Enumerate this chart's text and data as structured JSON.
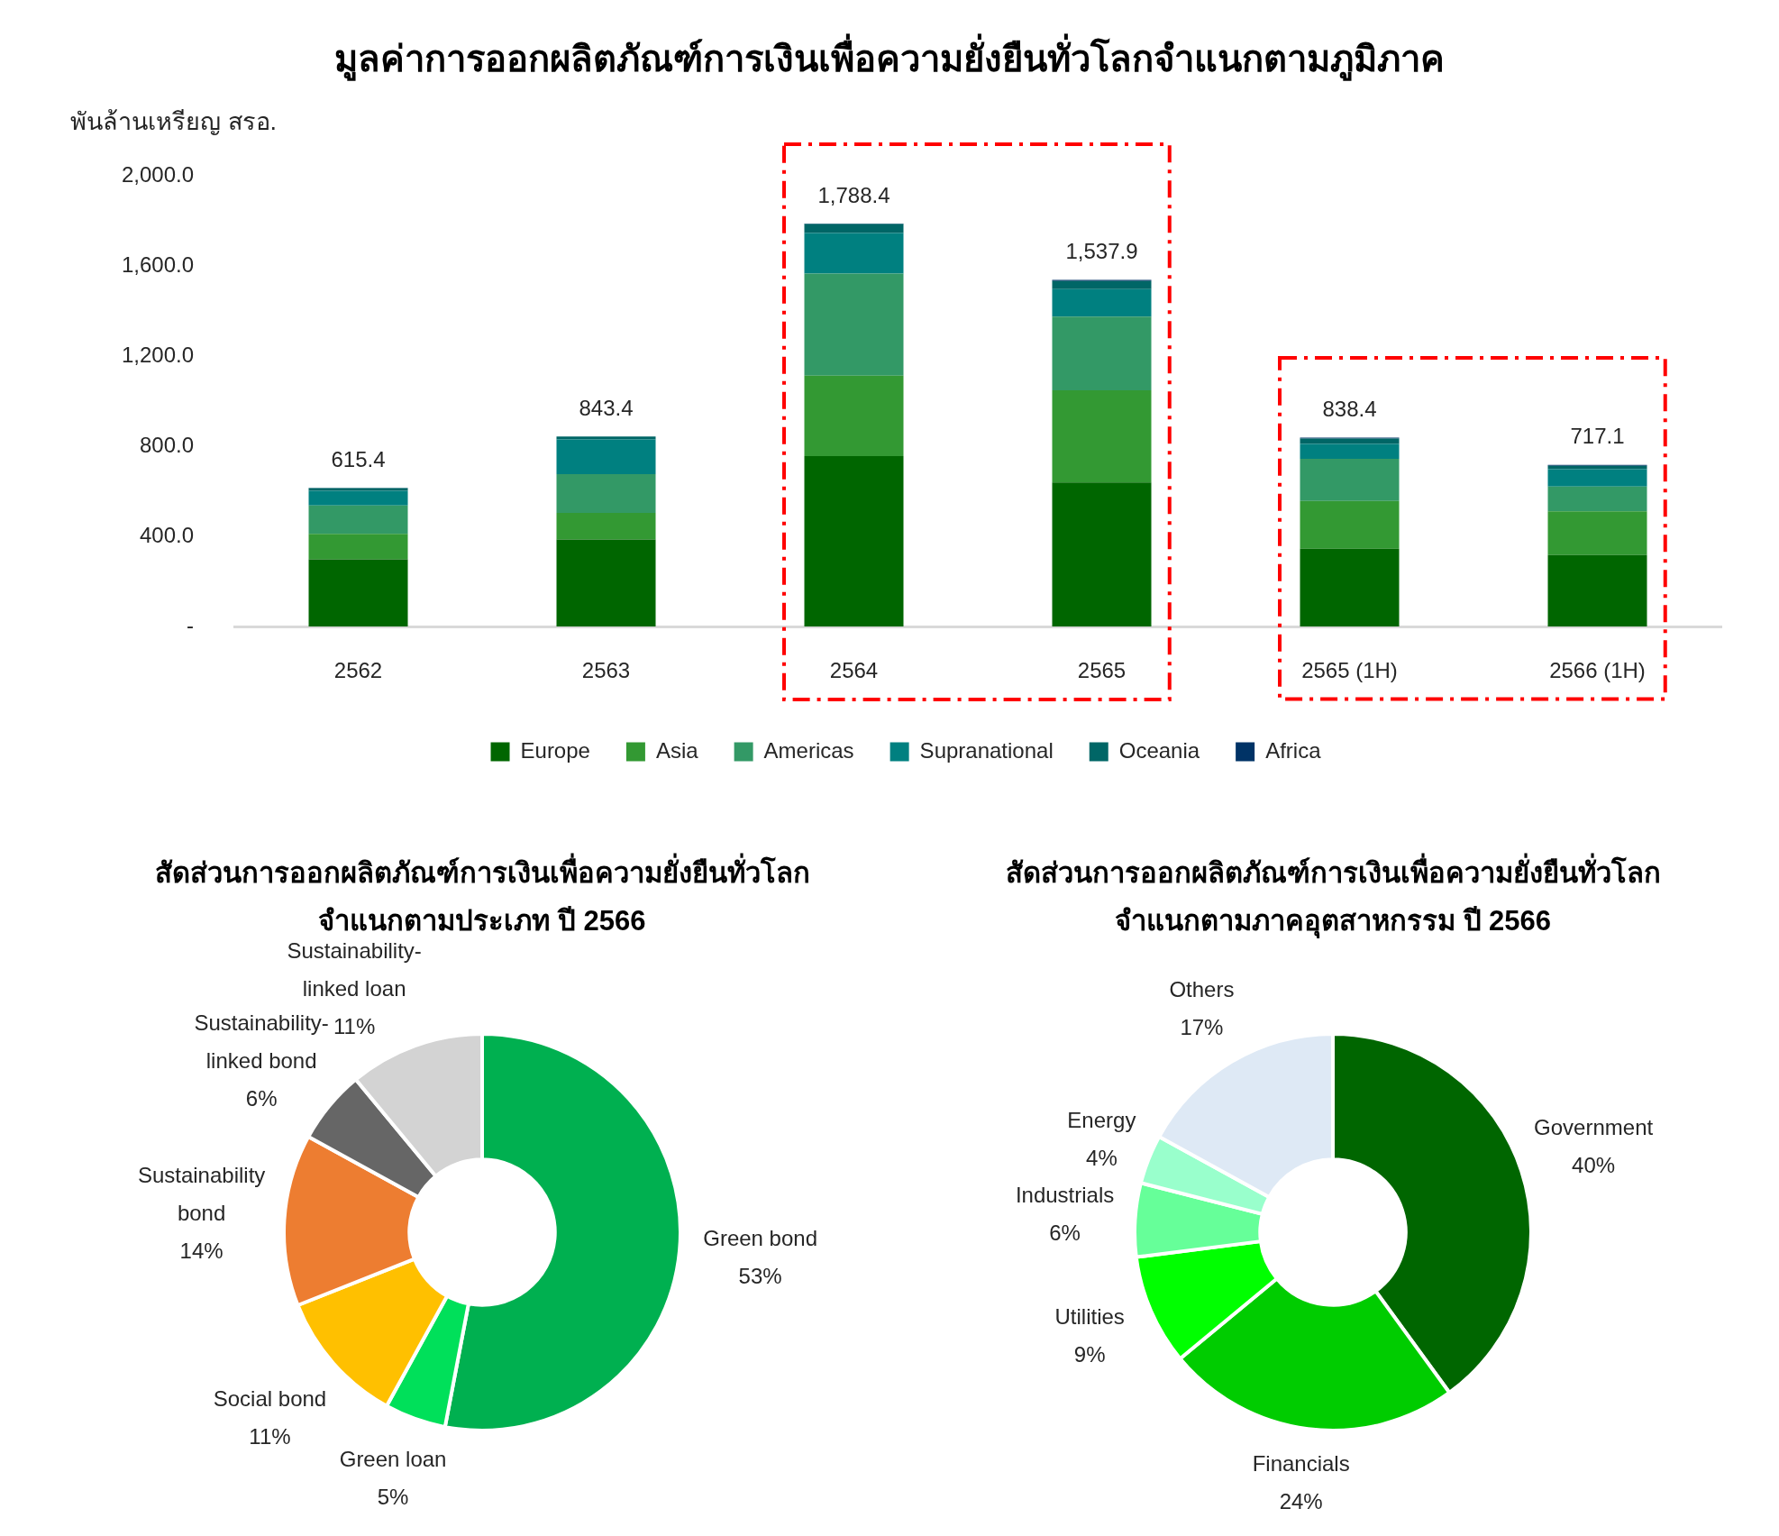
{
  "chart_data": [
    {
      "type": "bar",
      "title": "มูลค่าการออกผลิตภัณฑ์การเงินเพื่อความยั่งยืนทั่วโลกจำแนกตามภูมิภาค",
      "ylabel": "พันล้านเหรียญ สรอ.",
      "categories": [
        "2562",
        "2563",
        "2564",
        "2565",
        "2565 (1H)",
        "2566 (1H)"
      ],
      "stacked": true,
      "series": [
        {
          "name": "Europe",
          "color": "#006600",
          "values": [
            298,
            386,
            756,
            639,
            345,
            317
          ]
        },
        {
          "name": "Asia",
          "color": "#339933",
          "values": [
            113,
            118,
            357,
            409,
            212,
            194
          ]
        },
        {
          "name": "Americas",
          "color": "#339966",
          "values": [
            126,
            172,
            453,
            327,
            187,
            110
          ]
        },
        {
          "name": "Supranational",
          "color": "#008080",
          "values": [
            65,
            154,
            180,
            122,
            66,
            77
          ]
        },
        {
          "name": "Oceania",
          "color": "#006666",
          "values": [
            12,
            13,
            40,
            36,
            24,
            15
          ]
        },
        {
          "name": "Africa",
          "color": "#003366",
          "values": [
            1.4,
            0.4,
            2.4,
            4.9,
            4.4,
            4.1
          ]
        }
      ],
      "ylim": [
        0,
        2000
      ],
      "yticks": [
        {
          "value": 0,
          "label": "-"
        },
        {
          "value": 400,
          "label": "400.0"
        },
        {
          "value": 800,
          "label": "800.0"
        },
        {
          "value": 1200,
          "label": "1,200.0"
        },
        {
          "value": 1600,
          "label": "1,600.0"
        },
        {
          "value": 2000,
          "label": "2,000.0"
        }
      ],
      "totals": [
        "615.4",
        "843.4",
        "1,788.4",
        "1,537.9",
        "838.4",
        "717.1"
      ],
      "legend": "bottom"
    },
    {
      "type": "donut",
      "title": "สัดส่วนการออกผลิตภัณฑ์การเงินเพื่อความยั่งยืนทั่วโลก\nจำแนกตามประเภท ปี 2566",
      "categories": [
        "Green bond",
        "Green loan",
        "Social bond",
        "Sustainability bond",
        "Sustainability-linked bond",
        "Sustainability-linked loan"
      ],
      "values": [
        53,
        5,
        11,
        14,
        6,
        11
      ],
      "colors": [
        "#00b050",
        "#00e05a",
        "#ffc000",
        "#ed7d31",
        "#666666",
        "#d3d3d3"
      ],
      "value_labels": [
        "53%",
        "5%",
        "11%",
        "14%",
        "6%",
        "11%"
      ]
    },
    {
      "type": "donut",
      "title": "สัดส่วนการออกผลิตภัณฑ์การเงินเพื่อความยั่งยืนทั่วโลก\nจำแนกตามภาคอุตสาหกรรม ปี 2566",
      "categories": [
        "Government",
        "Financials",
        "Utilities",
        "Industrials",
        "Energy",
        "Others"
      ],
      "values": [
        40,
        24,
        9,
        6,
        4,
        17
      ],
      "colors": [
        "#006600",
        "#00cc00",
        "#00ff00",
        "#66ff99",
        "#99ffcc",
        "#dee9f5"
      ],
      "value_labels": [
        "40%",
        "24%",
        "9%",
        "6%",
        "4%",
        "17%"
      ]
    }
  ]
}
